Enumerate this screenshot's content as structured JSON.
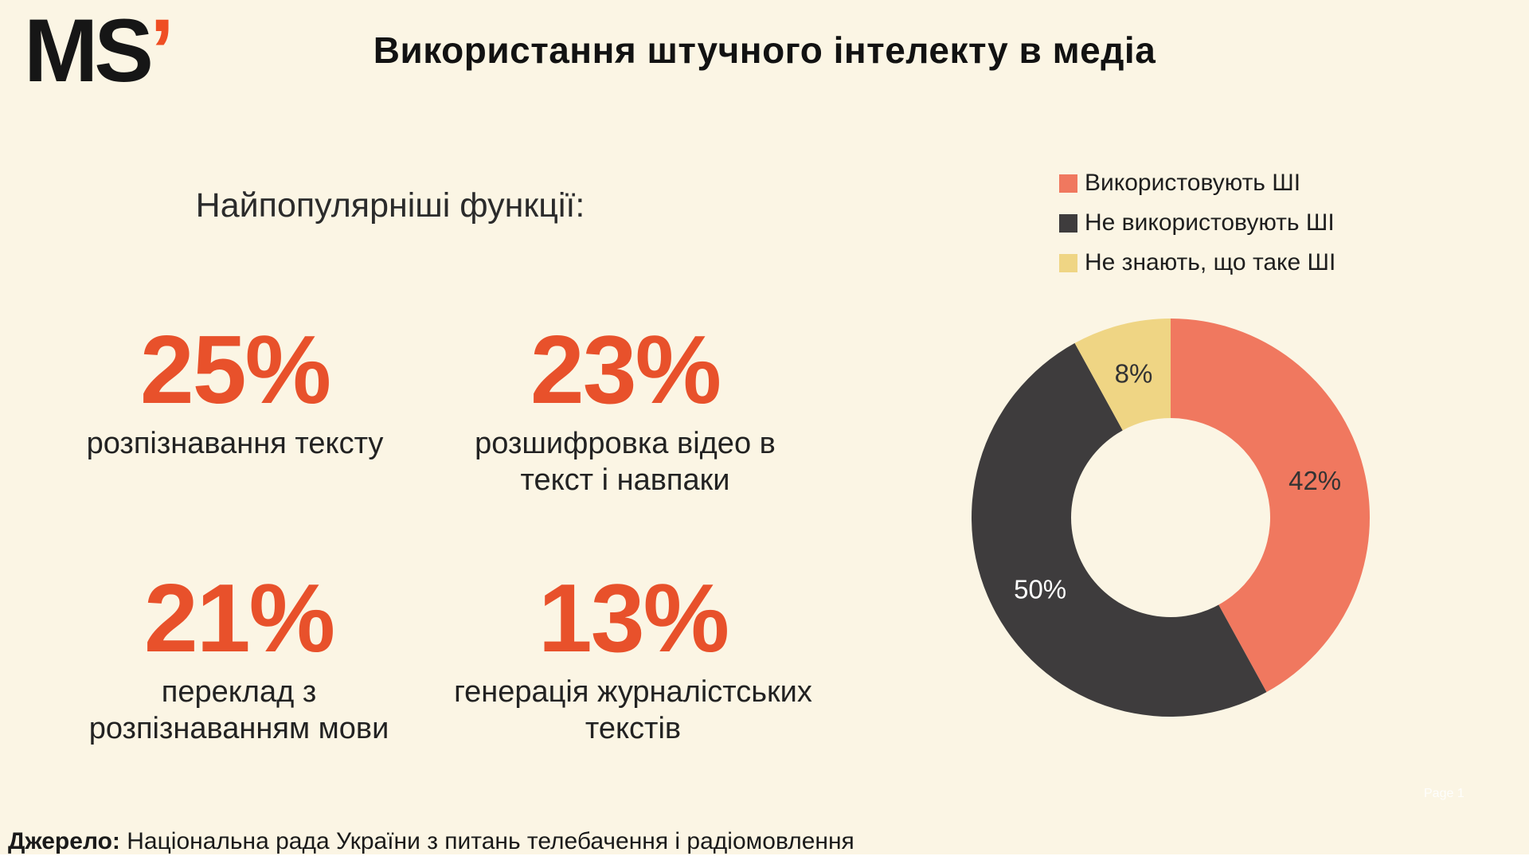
{
  "page": {
    "background": "#FBF5E4",
    "accent_color": "#E8512B"
  },
  "logo": {
    "text": "MS",
    "apostrophe": "’",
    "text_color": "#161616",
    "apostrophe_color": "#EF4E23"
  },
  "header": {
    "title": "Використання штучного інтелекту в медіа"
  },
  "stats": {
    "heading": "Найпопулярніші функції:",
    "value_color": "#E8512B",
    "items": [
      {
        "value": "25%",
        "label": "розпізнавання тексту"
      },
      {
        "value": "23%",
        "label": "розшифровка відео в текст і навпаки"
      },
      {
        "value": "21%",
        "label": "переклад з розпізнаванням мови"
      },
      {
        "value": "13%",
        "label": "генерація журналістських текстів"
      }
    ]
  },
  "chart_data": {
    "type": "pie",
    "donut": true,
    "start_angle_deg": 0,
    "legend_position": "top-right",
    "slices": [
      {
        "label": "Використовують ШІ",
        "value": 42,
        "color": "#F0785F",
        "data_label": "42%",
        "data_label_color": "#333333"
      },
      {
        "label": "Не використовують ШІ",
        "value": 50,
        "color": "#3E3C3D",
        "data_label": "50%",
        "data_label_color": "#FFFFFF"
      },
      {
        "label": "Не знають, що таке ШІ",
        "value": 8,
        "color": "#EFD584",
        "data_label": "8%",
        "data_label_color": "#333333"
      }
    ]
  },
  "footer": {
    "source_label": "Джерело:",
    "source_text": "Національна рада України з питань телебачення і радіомовлення",
    "page_marker": "Page 1"
  }
}
